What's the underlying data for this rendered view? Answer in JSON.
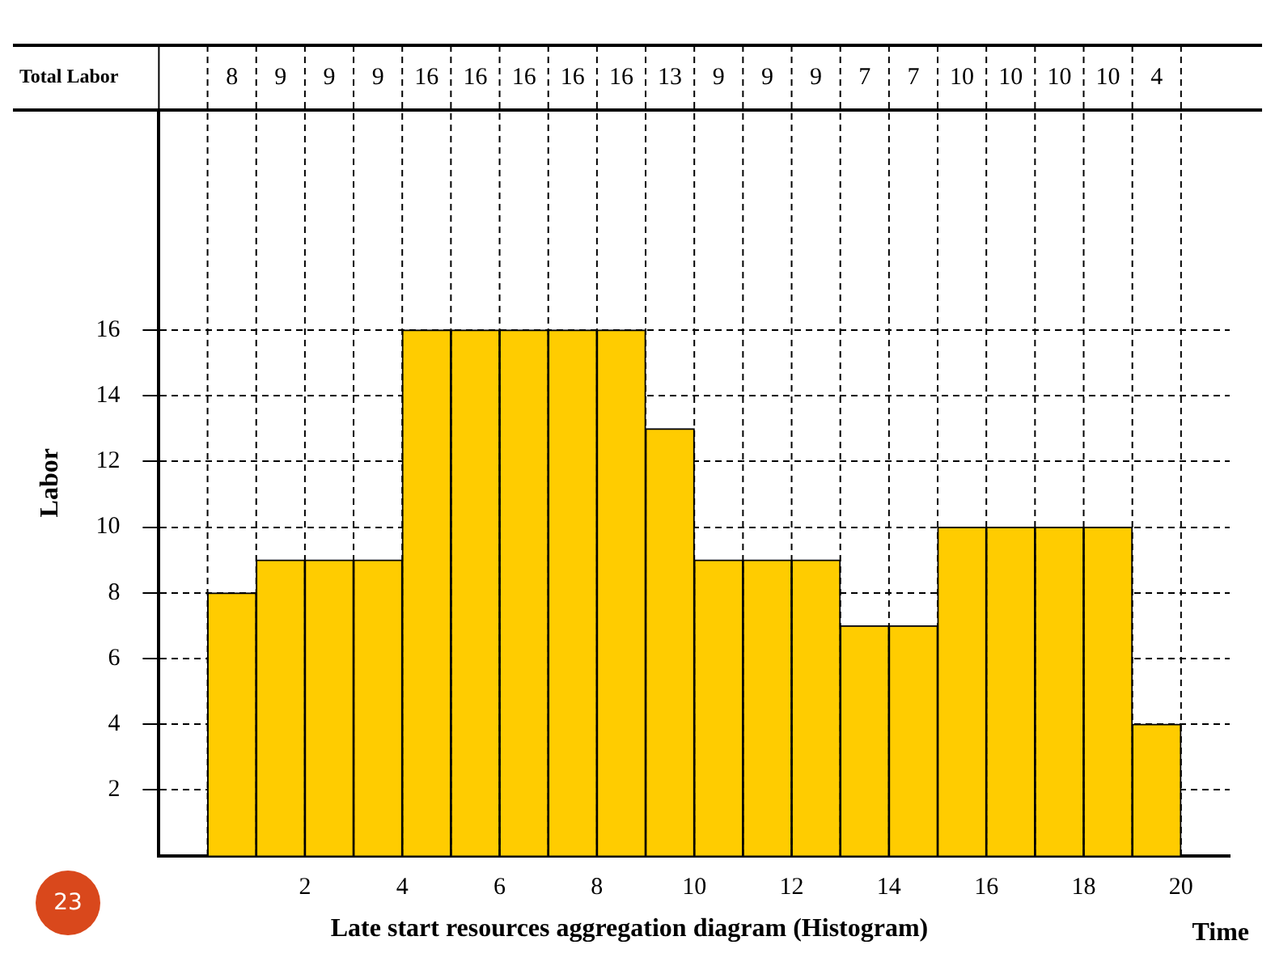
{
  "chart_data": {
    "type": "histogram",
    "title": "Late start resources aggregation diagram (Histogram)",
    "xlabel": "Time",
    "ylabel": "Labor",
    "bins": [
      0,
      1,
      2,
      3,
      4,
      5,
      6,
      7,
      8,
      9,
      10,
      11,
      12,
      13,
      14,
      15,
      16,
      17,
      18,
      19,
      20
    ],
    "values": [
      8,
      9,
      9,
      9,
      16,
      16,
      16,
      16,
      16,
      13,
      9,
      9,
      9,
      7,
      7,
      10,
      10,
      10,
      10,
      4
    ],
    "color": "#ffcc00",
    "xlim": [
      -1,
      21
    ],
    "xticks": [
      2,
      4,
      6,
      8,
      10,
      12,
      14,
      16,
      18,
      20
    ],
    "ylim": [
      0,
      22.7
    ],
    "yticks": [
      2,
      4,
      6,
      8,
      10,
      12,
      14,
      16
    ],
    "value_labels": [
      "8",
      "9",
      "9",
      "9",
      "16",
      "16",
      "16",
      "16",
      "16",
      "13",
      "9",
      "9",
      "9",
      "7",
      "7",
      "10",
      "10",
      "10",
      "10",
      "4"
    ],
    "grid": true,
    "line_style": "dashed",
    "annotations": [
      "Total Labor",
      "23"
    ]
  }
}
